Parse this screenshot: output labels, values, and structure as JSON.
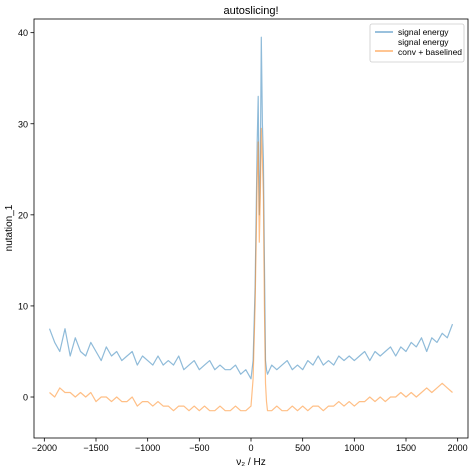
{
  "chart_data": {
    "type": "line",
    "title": "autoslicing!",
    "xlabel": "ν₂ / Hz",
    "ylabel": "nutation_1",
    "xlim": [
      -2100,
      2100
    ],
    "ylim": [
      -4.5,
      41.5
    ],
    "xticks": [
      -2000,
      -1500,
      -1000,
      -500,
      0,
      500,
      1000,
      1500,
      2000
    ],
    "xtick_labels": [
      "−2000",
      "−1500",
      "−1000",
      "−500",
      "0",
      "500",
      "1000",
      "1500",
      "2000"
    ],
    "yticks": [
      0,
      10,
      20,
      30,
      40
    ],
    "ytick_labels": [
      "0",
      "10",
      "20",
      "30",
      "40"
    ],
    "grid": false,
    "legend_position": "top-right",
    "series": [
      {
        "name": "signal energy",
        "color": "#1f77b4",
        "opacity": 0.5,
        "x": [
          -1950,
          -1900,
          -1850,
          -1800,
          -1750,
          -1700,
          -1650,
          -1600,
          -1550,
          -1500,
          -1450,
          -1400,
          -1350,
          -1300,
          -1250,
          -1200,
          -1150,
          -1100,
          -1050,
          -1000,
          -950,
          -900,
          -850,
          -800,
          -750,
          -700,
          -650,
          -600,
          -550,
          -500,
          -450,
          -400,
          -350,
          -300,
          -250,
          -200,
          -150,
          -100,
          -50,
          0,
          20,
          40,
          60,
          70,
          80,
          90,
          100,
          110,
          120,
          130,
          140,
          150,
          160,
          200,
          250,
          300,
          350,
          400,
          450,
          500,
          550,
          600,
          650,
          700,
          750,
          800,
          850,
          900,
          950,
          1000,
          1050,
          1100,
          1150,
          1200,
          1250,
          1300,
          1350,
          1400,
          1450,
          1500,
          1550,
          1600,
          1650,
          1700,
          1750,
          1800,
          1850,
          1900,
          1950
        ],
        "values": [
          7.5,
          6.0,
          5.0,
          7.5,
          4.5,
          6.5,
          5.0,
          4.5,
          6.0,
          5.0,
          4.0,
          5.5,
          4.5,
          5.0,
          4.0,
          4.5,
          5.0,
          3.5,
          4.5,
          4.0,
          3.5,
          4.5,
          3.5,
          4.0,
          3.5,
          4.5,
          3.0,
          3.5,
          4.0,
          3.0,
          3.5,
          4.0,
          3.0,
          3.5,
          3.0,
          3.0,
          3.5,
          2.5,
          3.0,
          2.0,
          4.0,
          12.0,
          28.0,
          33.0,
          20.0,
          25.0,
          39.5,
          30.0,
          26.0,
          15.0,
          4.0,
          3.0,
          2.5,
          3.5,
          3.0,
          3.5,
          4.0,
          3.0,
          3.5,
          3.0,
          4.0,
          3.5,
          4.5,
          3.5,
          4.0,
          3.5,
          4.5,
          4.0,
          4.5,
          4.0,
          4.5,
          5.0,
          4.0,
          5.0,
          4.5,
          5.0,
          5.5,
          4.5,
          5.5,
          5.0,
          6.0,
          5.5,
          6.5,
          5.0,
          6.5,
          6.0,
          7.0,
          6.5,
          8.0
        ]
      },
      {
        "name": "signal energy\nconv + baselined",
        "color": "#ff7f0e",
        "opacity": 0.5,
        "x": [
          -1950,
          -1900,
          -1850,
          -1800,
          -1750,
          -1700,
          -1650,
          -1600,
          -1550,
          -1500,
          -1450,
          -1400,
          -1350,
          -1300,
          -1250,
          -1200,
          -1150,
          -1100,
          -1050,
          -1000,
          -950,
          -900,
          -850,
          -800,
          -750,
          -700,
          -650,
          -600,
          -550,
          -500,
          -450,
          -400,
          -350,
          -300,
          -250,
          -200,
          -150,
          -100,
          -50,
          0,
          20,
          40,
          60,
          70,
          80,
          90,
          100,
          110,
          120,
          130,
          140,
          150,
          160,
          200,
          250,
          300,
          350,
          400,
          450,
          500,
          550,
          600,
          650,
          700,
          750,
          800,
          850,
          900,
          950,
          1000,
          1050,
          1100,
          1150,
          1200,
          1250,
          1300,
          1350,
          1400,
          1450,
          1500,
          1550,
          1600,
          1650,
          1700,
          1750,
          1800,
          1850,
          1900,
          1950
        ],
        "values": [
          0.5,
          0.0,
          1.0,
          0.5,
          0.5,
          0.0,
          0.5,
          0.0,
          0.5,
          -0.5,
          0.0,
          0.0,
          -0.5,
          0.0,
          -0.5,
          -0.5,
          0.0,
          -1.0,
          -0.5,
          -0.5,
          -1.0,
          -0.5,
          -1.0,
          -1.0,
          -1.5,
          -1.0,
          -1.0,
          -1.5,
          -1.0,
          -1.5,
          -1.0,
          -1.5,
          -1.5,
          -1.0,
          -1.5,
          -1.5,
          -1.0,
          -1.5,
          -1.5,
          -1.0,
          2.0,
          10.0,
          24.0,
          28.0,
          17.0,
          22.0,
          29.5,
          26.0,
          22.0,
          10.0,
          1.5,
          -0.5,
          -1.5,
          -1.5,
          -1.0,
          -1.5,
          -1.5,
          -1.0,
          -1.5,
          -1.0,
          -1.5,
          -1.0,
          -1.0,
          -1.5,
          -1.0,
          -1.0,
          -0.5,
          -1.0,
          -0.5,
          -1.0,
          -0.5,
          -0.5,
          0.0,
          -0.5,
          0.0,
          -0.5,
          0.0,
          0.0,
          0.5,
          0.0,
          0.5,
          0.0,
          0.5,
          1.0,
          0.5,
          1.0,
          1.5,
          1.0,
          0.5
        ]
      }
    ]
  }
}
